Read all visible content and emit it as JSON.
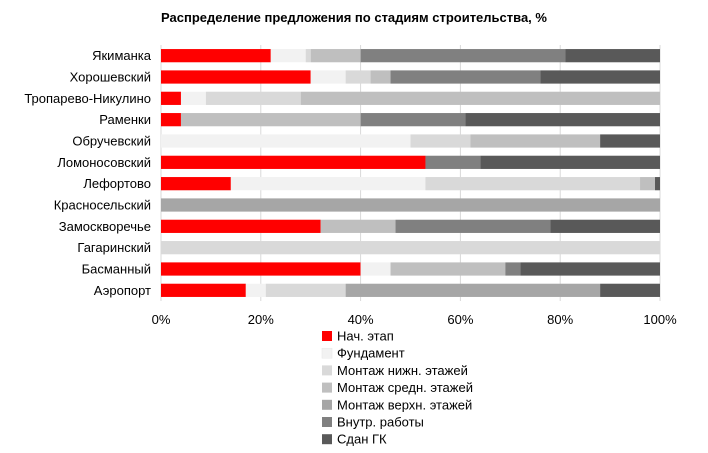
{
  "chart_data": {
    "type": "bar",
    "orientation": "horizontal",
    "stacked": "percent",
    "title": "Распределение предложения по стадиям строительства, %",
    "categories": [
      "Якиманка",
      "Хорошевский",
      "Тропарево-Никулино",
      "Раменки",
      "Обручевский",
      "Ломоносовский",
      "Лефортово",
      "Красносельский",
      "Замоскворечье",
      "Гагаринский",
      "Басманный",
      "Аэропорт"
    ],
    "xlim": [
      0,
      100
    ],
    "xticks": [
      "0%",
      "20%",
      "40%",
      "60%",
      "80%",
      "100%"
    ],
    "grid": true,
    "legend_position": "bottom",
    "series": [
      {
        "name": "Нач. этап",
        "color": "#ff0000",
        "values": [
          22,
          30,
          4,
          4,
          0,
          53,
          14,
          0,
          32,
          0,
          40,
          17
        ]
      },
      {
        "name": "Фундамент",
        "color": "#f2f2f2",
        "values": [
          7,
          7,
          5,
          0,
          50,
          0,
          39,
          0,
          0,
          0,
          6,
          4
        ]
      },
      {
        "name": "Монтаж нижн. этажей",
        "color": "#d9d9d9",
        "values": [
          1,
          5,
          19,
          0,
          12,
          0,
          43,
          0,
          0,
          100,
          0,
          16
        ]
      },
      {
        "name": "Монтаж средн. этажей",
        "color": "#bfbfbf",
        "values": [
          10,
          4,
          72,
          36,
          26,
          0,
          3,
          0,
          15,
          0,
          23,
          0
        ]
      },
      {
        "name": "Монтаж верхн. этажей",
        "color": "#a6a6a6",
        "values": [
          0,
          0,
          0,
          0,
          0,
          0,
          0,
          100,
          0,
          0,
          0,
          51
        ]
      },
      {
        "name": "Внутр. работы",
        "color": "#808080",
        "values": [
          41,
          30,
          0,
          21,
          0,
          11,
          0,
          0,
          31,
          0,
          3,
          0
        ]
      },
      {
        "name": "Сдан ГК",
        "color": "#595959",
        "values": [
          19,
          24,
          0,
          39,
          12,
          36,
          1,
          0,
          22,
          0,
          28,
          12
        ]
      }
    ]
  }
}
